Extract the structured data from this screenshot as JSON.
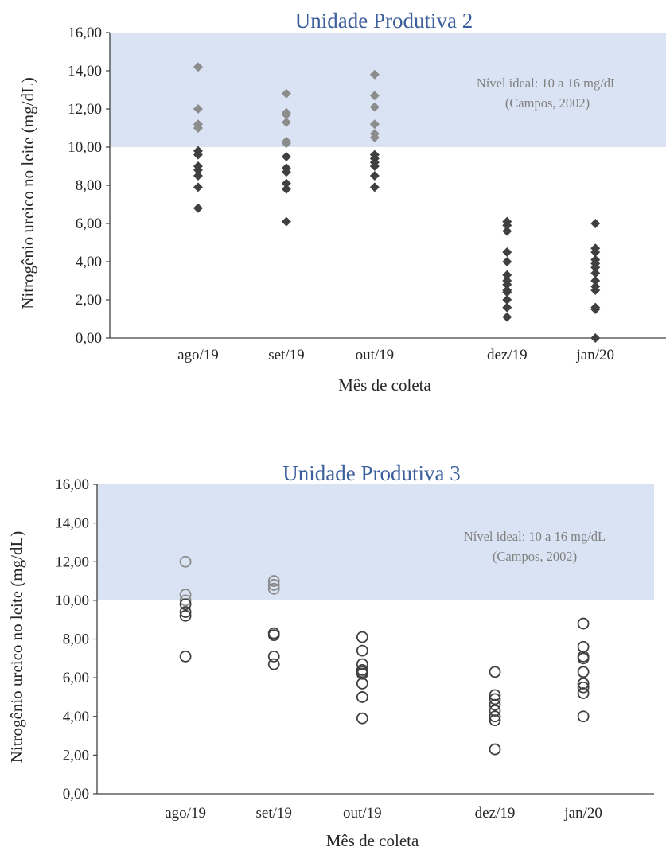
{
  "chart_data": [
    {
      "type": "scatter",
      "title": "Unidade Produtiva 2",
      "xlabel": "Mês de coleta",
      "ylabel": "Nitrogênio ureico no leite (mg/dL)",
      "ylim": [
        0,
        16
      ],
      "yticks": [
        "0,00",
        "2,00",
        "4,00",
        "6,00",
        "8,00",
        "10,00",
        "12,00",
        "14,00",
        "16,00"
      ],
      "categories": [
        "ago/19",
        "set/19",
        "out/19",
        "dez/19",
        "jan/20"
      ],
      "category_positions": [
        1,
        2,
        3,
        4.5,
        5.5
      ],
      "xlim": [
        0,
        6.3
      ],
      "marker": "diamond-filled",
      "colors": {
        "below_ideal": "#404040",
        "within_ideal": "#8C8C8C",
        "band": "#DAE3F3",
        "title": "#3B5E9C"
      },
      "ideal_band": {
        "from": 10,
        "to": 16,
        "label_lines": [
          "Nível ideal: 10 a 16 mg/dL",
          "(Campos, 2002)"
        ]
      },
      "grid": false,
      "legend": "none",
      "series": [
        {
          "values": [
            [
              14.2,
              12.0,
              11.2,
              11.0,
              9.8,
              9.6,
              9.0,
              8.8,
              8.5,
              7.9,
              6.8
            ],
            [
              12.8,
              11.8,
              11.7,
              11.3,
              10.3,
              10.2,
              9.5,
              8.9,
              8.7,
              8.1,
              7.8,
              6.1
            ],
            [
              13.8,
              12.7,
              12.1,
              11.2,
              10.7,
              10.5,
              9.6,
              9.4,
              9.2,
              9.0,
              8.5,
              7.9
            ],
            [
              6.1,
              5.9,
              5.6,
              4.5,
              4.0,
              3.3,
              3.0,
              2.8,
              2.5,
              2.4,
              2.0,
              1.6,
              1.1
            ],
            [
              6.0,
              4.7,
              4.5,
              4.1,
              3.9,
              3.7,
              3.4,
              3.0,
              2.7,
              2.5,
              1.6,
              1.5,
              0.0
            ]
          ]
        }
      ]
    },
    {
      "type": "scatter",
      "title": "Unidade Produtiva 3",
      "xlabel": "Mês de coleta",
      "ylabel": "Nitrogênio ureico no leite (mg/dL)",
      "ylim": [
        0,
        16
      ],
      "yticks": [
        "0,00",
        "2,00",
        "4,00",
        "6,00",
        "8,00",
        "10,00",
        "12,00",
        "14,00",
        "16,00"
      ],
      "categories": [
        "ago/19",
        "set/19",
        "out/19",
        "dez/19",
        "jan/20"
      ],
      "category_positions": [
        1,
        2,
        3,
        4.5,
        5.5
      ],
      "xlim": [
        0,
        6.3
      ],
      "marker": "circle-open",
      "colors": {
        "below_ideal": "#404040",
        "within_ideal": "#8C8C8C",
        "band": "#DAE3F3",
        "title": "#3B5E9C"
      },
      "ideal_band": {
        "from": 10,
        "to": 16,
        "label_lines": [
          "Nível ideal: 10 a 16 mg/dL",
          "(Campos, 2002)"
        ]
      },
      "grid": false,
      "legend": "none",
      "series": [
        {
          "values": [
            [
              12.0,
              10.3,
              10.0,
              9.8,
              9.4,
              9.2,
              7.1
            ],
            [
              11.0,
              10.8,
              10.6,
              8.3,
              8.2,
              7.1,
              6.7
            ],
            [
              8.1,
              7.4,
              6.7,
              6.4,
              6.3,
              6.2,
              5.7,
              5.0,
              3.9
            ],
            [
              6.3,
              5.1,
              4.9,
              4.6,
              4.3,
              4.0,
              3.8,
              2.3
            ],
            [
              8.8,
              7.6,
              7.1,
              7.0,
              6.3,
              5.7,
              5.5,
              5.2,
              4.0
            ]
          ]
        }
      ]
    }
  ]
}
